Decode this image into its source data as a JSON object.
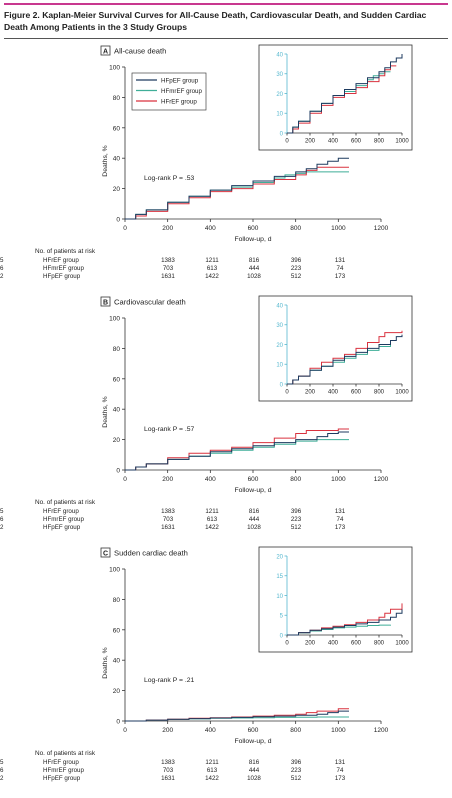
{
  "figure": {
    "title": "Figure 2. Kaplan-Meier Survival Curves for All-Cause Death, Cardiovascular Death, and Sudden Cardiac Death Among Patients in the 3 Study Groups"
  },
  "colors": {
    "HFpEF": "#1d3a5f",
    "HFmrEF": "#3fae98",
    "HFrEF": "#d9323f",
    "inset_axis": "#56b8cf",
    "accent": "#c8388f"
  },
  "chart_data": [
    {
      "type": "line",
      "panel_letter": "A",
      "title": "All-cause death",
      "xlabel": "Follow-up, d",
      "ylabel": "Deaths, %",
      "xlim": [
        0,
        1200
      ],
      "ylim": [
        0,
        100
      ],
      "xticks": [
        "0",
        "200",
        "400",
        "600",
        "800",
        "1000",
        "1200"
      ],
      "yticks": [
        "0",
        "20",
        "40",
        "60",
        "80",
        "100"
      ],
      "annotation": "Log-rank P = .53",
      "legend": {
        "placement": "inside inset, top-left",
        "entries": [
          "HFpEF group",
          "HFmrEF group",
          "HFrEF group"
        ]
      },
      "series": [
        {
          "name": "HFpEF group",
          "color": "#1d3a5f",
          "x": [
            0,
            50,
            100,
            200,
            300,
            400,
            500,
            600,
            700,
            800,
            850,
            900,
            950,
            1000,
            1050
          ],
          "y": [
            0,
            3,
            6,
            11,
            15,
            19,
            22,
            25,
            28,
            31,
            33,
            36,
            38,
            40,
            40
          ]
        },
        {
          "name": "HFmrEF group",
          "color": "#3fae98",
          "x": [
            0,
            50,
            100,
            200,
            300,
            400,
            500,
            600,
            700,
            750,
            800,
            850,
            900,
            1050
          ],
          "y": [
            0,
            3,
            6,
            11,
            15,
            19,
            21,
            24,
            27,
            29,
            30,
            31,
            31,
            31
          ]
        },
        {
          "name": "HFrEF group",
          "color": "#d9323f",
          "x": [
            0,
            50,
            100,
            200,
            300,
            400,
            500,
            600,
            700,
            800,
            850,
            900,
            950,
            1050
          ],
          "y": [
            0,
            2,
            5,
            10,
            14,
            18,
            20,
            23,
            26,
            29,
            32,
            34,
            34,
            34
          ]
        }
      ],
      "inset": {
        "xlim": [
          0,
          1000
        ],
        "ylim": [
          0,
          40
        ],
        "xticks": [
          "0",
          "200",
          "400",
          "600",
          "800",
          "1000"
        ],
        "yticks": [
          "0",
          "10",
          "20",
          "30",
          "40"
        ]
      },
      "risk_table": {
        "header": "No. of patients at risk",
        "rows": [
          {
            "group": "HFrEF group",
            "values": [
              "1383",
              "1211",
              "816",
              "396",
              "131",
              "25"
            ]
          },
          {
            "group": "HFmrEF group",
            "values": [
              "703",
              "613",
              "444",
              "223",
              "74",
              "16"
            ]
          },
          {
            "group": "HFpEF group",
            "values": [
              "1631",
              "1422",
              "1028",
              "512",
              "173",
              "42"
            ]
          }
        ]
      }
    },
    {
      "type": "line",
      "panel_letter": "B",
      "title": "Cardiovascular death",
      "xlabel": "Follow-up, d",
      "ylabel": "Deaths, %",
      "xlim": [
        0,
        1200
      ],
      "ylim": [
        0,
        100
      ],
      "xticks": [
        "0",
        "200",
        "400",
        "600",
        "800",
        "1000",
        "1200"
      ],
      "yticks": [
        "0",
        "20",
        "40",
        "60",
        "80",
        "100"
      ],
      "annotation": "Log-rank P = .57",
      "series": [
        {
          "name": "HFpEF group",
          "color": "#1d3a5f",
          "x": [
            0,
            50,
            100,
            200,
            300,
            400,
            500,
            600,
            700,
            800,
            900,
            950,
            1000,
            1050
          ],
          "y": [
            0,
            2,
            4,
            7,
            9,
            12,
            14,
            16,
            18,
            20,
            22,
            24,
            25,
            25
          ]
        },
        {
          "name": "HFmrEF group",
          "color": "#3fae98",
          "x": [
            0,
            50,
            100,
            200,
            300,
            400,
            500,
            600,
            700,
            800,
            900,
            1050
          ],
          "y": [
            0,
            2,
            4,
            7,
            9,
            11,
            13,
            15,
            17,
            19,
            20,
            20
          ]
        },
        {
          "name": "HFrEF group",
          "color": "#d9323f",
          "x": [
            0,
            50,
            100,
            200,
            300,
            400,
            500,
            600,
            700,
            800,
            850,
            900,
            1000,
            1050
          ],
          "y": [
            0,
            2,
            4,
            8,
            11,
            13,
            15,
            18,
            21,
            24,
            26,
            26,
            27,
            27
          ]
        }
      ],
      "inset": {
        "xlim": [
          0,
          1000
        ],
        "ylim": [
          0,
          40
        ],
        "xticks": [
          "0",
          "200",
          "400",
          "600",
          "800",
          "1000"
        ],
        "yticks": [
          "0",
          "10",
          "20",
          "30",
          "40"
        ]
      },
      "risk_table": {
        "header": "No. of patients at risk",
        "rows": [
          {
            "group": "HFrEF group",
            "values": [
              "1383",
              "1211",
              "816",
              "396",
              "131",
              "25"
            ]
          },
          {
            "group": "HFmrEF group",
            "values": [
              "703",
              "613",
              "444",
              "223",
              "74",
              "16"
            ]
          },
          {
            "group": "HFpEF group",
            "values": [
              "1631",
              "1422",
              "1028",
              "512",
              "173",
              "42"
            ]
          }
        ]
      }
    },
    {
      "type": "line",
      "panel_letter": "C",
      "title": "Sudden cardiac death",
      "xlabel": "Follow-up, d",
      "ylabel": "Deaths, %",
      "xlim": [
        0,
        1200
      ],
      "ylim": [
        0,
        100
      ],
      "xticks": [
        "0",
        "200",
        "400",
        "600",
        "800",
        "1000",
        "1200"
      ],
      "yticks": [
        "0",
        "20",
        "40",
        "60",
        "80",
        "100"
      ],
      "annotation": "Log-rank P = .21",
      "series": [
        {
          "name": "HFpEF group",
          "color": "#1d3a5f",
          "x": [
            0,
            100,
            200,
            300,
            400,
            500,
            600,
            700,
            800,
            900,
            950,
            1000,
            1050
          ],
          "y": [
            0,
            0.6,
            1.2,
            1.6,
            2.0,
            2.4,
            2.8,
            3.2,
            3.8,
            4.5,
            5.5,
            6.5,
            6.5
          ]
        },
        {
          "name": "HFmrEF group",
          "color": "#3fae98",
          "x": [
            0,
            100,
            200,
            300,
            400,
            500,
            600,
            700,
            800,
            900,
            1050
          ],
          "y": [
            0,
            0.5,
            1.0,
            1.4,
            1.8,
            2.0,
            2.2,
            2.4,
            2.5,
            2.6,
            2.6
          ]
        },
        {
          "name": "HFrEF group",
          "color": "#d9323f",
          "x": [
            0,
            100,
            200,
            300,
            400,
            500,
            600,
            700,
            800,
            850,
            900,
            1000,
            1050
          ],
          "y": [
            0,
            0.6,
            1.2,
            1.8,
            2.2,
            2.6,
            3.2,
            3.8,
            4.5,
            5.5,
            6.5,
            8.0,
            8.0
          ]
        }
      ],
      "inset": {
        "xlim": [
          0,
          1000
        ],
        "ylim": [
          0,
          20
        ],
        "xticks": [
          "0",
          "200",
          "400",
          "600",
          "800",
          "1000"
        ],
        "yticks": [
          "0",
          "5",
          "10",
          "15",
          "20"
        ]
      },
      "risk_table": {
        "header": "No. of patients at risk",
        "rows": [
          {
            "group": "HFrEF group",
            "values": [
              "1383",
              "1211",
              "816",
              "396",
              "131",
              "25"
            ]
          },
          {
            "group": "HFmrEF group",
            "values": [
              "703",
              "613",
              "444",
              "223",
              "74",
              "16"
            ]
          },
          {
            "group": "HFpEF group",
            "values": [
              "1631",
              "1422",
              "1028",
              "512",
              "173",
              "42"
            ]
          }
        ]
      }
    }
  ]
}
